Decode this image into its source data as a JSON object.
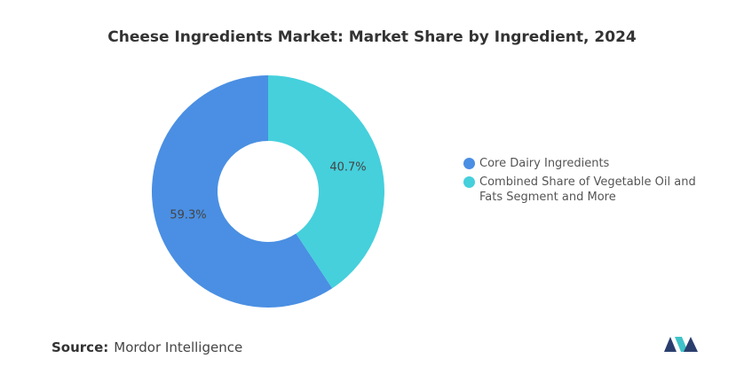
{
  "chart_data": {
    "type": "donut",
    "title": "Cheese Ingredients Market: Market Share by Ingredient, 2024",
    "categories": [
      "Core Dairy Ingredients",
      "Combined Share of Vegetable Oil and Fats Segment and More"
    ],
    "values": [
      59.3,
      40.7
    ],
    "value_labels": [
      "59.3%",
      "40.7%"
    ],
    "colors": [
      "#4a8fe3",
      "#45d0dc"
    ],
    "legend": "right"
  },
  "source": {
    "label": "Source:",
    "text": "Mordor Intelligence"
  }
}
